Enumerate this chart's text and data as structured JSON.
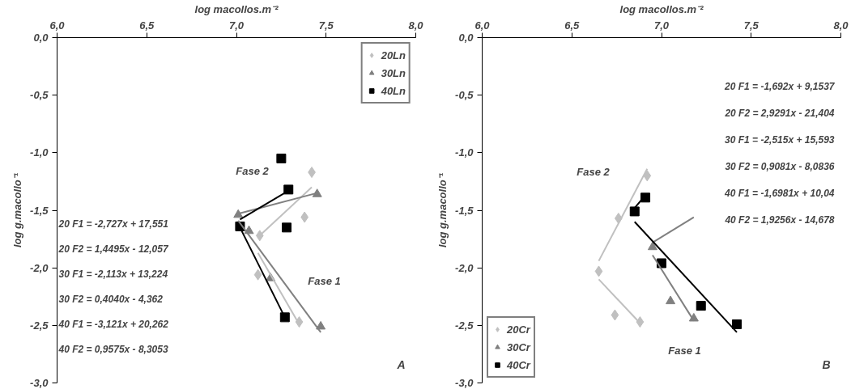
{
  "chart_data": [
    {
      "type": "scatter",
      "title": "A",
      "xlabel": "log macollos.m⁻²",
      "ylabel": "log g.macollo⁻¹",
      "xlim": [
        6.0,
        8.0
      ],
      "xticks": [
        {
          "value": 6.0,
          "label": "6,0"
        },
        {
          "value": 6.5,
          "label": "6,5"
        },
        {
          "value": 7.0,
          "label": "7,0"
        },
        {
          "value": 7.5,
          "label": "7,5"
        },
        {
          "value": 8.0,
          "label": "8,0"
        }
      ],
      "ylim": [
        -3.0,
        0.0
      ],
      "yticks": [
        {
          "value": 0.0,
          "label": "0,0"
        },
        {
          "value": -0.5,
          "label": "-0,5"
        },
        {
          "value": -1.0,
          "label": "-1,0"
        },
        {
          "value": -1.5,
          "label": "-1,5"
        },
        {
          "value": -2.0,
          "label": "-2,0"
        },
        {
          "value": -2.5,
          "label": "-2,5"
        },
        {
          "value": -3.0,
          "label": "-3,0"
        }
      ],
      "grid": false,
      "legend": "top right",
      "series": [
        {
          "name": "20Ln",
          "marker": "diamond",
          "color": "#c0c0c0",
          "x": [
            7.42,
            7.38,
            7.13,
            7.12,
            7.35
          ],
          "values": [
            -1.17,
            -1.56,
            -1.72,
            -2.06,
            -2.47
          ]
        },
        {
          "name": "30Ln",
          "marker": "triangle",
          "color": "#808080",
          "x": [
            7.01,
            7.07,
            7.19,
            7.45,
            7.47
          ],
          "values": [
            -1.54,
            -1.68,
            -2.09,
            -1.36,
            -2.51
          ]
        },
        {
          "name": "40Ln",
          "marker": "square",
          "color": "#000000",
          "x": [
            7.25,
            7.29,
            7.28,
            7.02,
            7.27
          ],
          "values": [
            -1.05,
            -1.32,
            -1.65,
            -1.64,
            -2.43
          ]
        },
        {
          "type": "line",
          "color": "#c0c0c0",
          "x": [
            7.12,
            7.35
          ],
          "values": [
            -1.87,
            -2.49
          ]
        },
        {
          "type": "line",
          "color": "#c0c0c0",
          "x": [
            7.13,
            7.42
          ],
          "values": [
            -1.72,
            -1.3
          ]
        },
        {
          "type": "line",
          "color": "#808080",
          "x": [
            7.01,
            7.47
          ],
          "values": [
            -1.59,
            -2.56
          ]
        },
        {
          "type": "line",
          "color": "#808080",
          "x": [
            7.01,
            7.45
          ],
          "values": [
            -1.53,
            -1.35
          ]
        },
        {
          "type": "line",
          "color": "#000000",
          "x": [
            7.02,
            7.27
          ],
          "values": [
            -1.65,
            -2.43
          ]
        },
        {
          "type": "line",
          "color": "#000000",
          "x": [
            7.02,
            7.29
          ],
          "values": [
            -1.58,
            -1.33
          ]
        }
      ],
      "annotations": [
        "Fase 2",
        "Fase 1",
        "20 F1 = -2,727x + 17,551",
        "20 F2 = 1,4495x - 12,057",
        "30 F1 = -2,113x + 13,224",
        "30 F2 = 0,4040x - 4,362",
        "40 F1 = -3,121x + 20,262",
        "40 F2 = 0,9575x - 8,3053"
      ]
    },
    {
      "type": "scatter",
      "title": "B",
      "xlabel": "log macollos.m⁻²",
      "ylabel": "log g.macollo⁻¹",
      "xlim": [
        6.0,
        8.0
      ],
      "xticks": [
        {
          "value": 6.0,
          "label": "6,0"
        },
        {
          "value": 6.5,
          "label": "6,5"
        },
        {
          "value": 7.0,
          "label": "7,0"
        },
        {
          "value": 7.5,
          "label": "7,5"
        },
        {
          "value": 8.0,
          "label": "8,0"
        }
      ],
      "ylim": [
        -3.0,
        0.0
      ],
      "yticks": [
        {
          "value": 0.0,
          "label": "0,0"
        },
        {
          "value": -0.5,
          "label": "-0,5"
        },
        {
          "value": -1.0,
          "label": "-1,0"
        },
        {
          "value": -1.5,
          "label": "-1,5"
        },
        {
          "value": -2.0,
          "label": "-2,0"
        },
        {
          "value": -2.5,
          "label": "-2,5"
        },
        {
          "value": -3.0,
          "label": "-3,0"
        }
      ],
      "grid": false,
      "legend": "bottom left",
      "series": [
        {
          "name": "20Cr",
          "marker": "diamond",
          "color": "#c0c0c0",
          "x": [
            6.92,
            6.76,
            6.65,
            6.74,
            6.88
          ],
          "values": [
            -1.2,
            -1.57,
            -2.03,
            -2.41,
            -2.47
          ]
        },
        {
          "name": "30Cr",
          "marker": "triangle",
          "color": "#808080",
          "x": [
            6.95,
            7.05,
            7.18
          ],
          "values": [
            -1.82,
            -2.29,
            -2.44
          ]
        },
        {
          "name": "40Cr",
          "marker": "square",
          "color": "#000000",
          "x": [
            6.91,
            6.85,
            7.0,
            7.22,
            7.42
          ],
          "values": [
            -1.39,
            -1.51,
            -1.96,
            -2.33,
            -2.49
          ]
        },
        {
          "type": "line",
          "color": "#c0c0c0",
          "x": [
            6.65,
            6.88
          ],
          "values": [
            -2.1,
            -2.48
          ]
        },
        {
          "type": "line",
          "color": "#c0c0c0",
          "x": [
            6.65,
            6.92
          ],
          "values": [
            -1.94,
            -1.14
          ]
        },
        {
          "type": "line",
          "color": "#808080",
          "x": [
            6.95,
            7.18
          ],
          "values": [
            -1.89,
            -2.46
          ]
        },
        {
          "type": "line",
          "color": "#808080",
          "x": [
            6.95,
            7.18
          ],
          "values": [
            -1.78,
            -1.56
          ]
        },
        {
          "type": "line",
          "color": "#000000",
          "x": [
            6.85,
            7.42
          ],
          "values": [
            -1.6,
            -2.56
          ]
        },
        {
          "type": "line",
          "color": "#000000",
          "x": [
            6.85,
            6.91
          ],
          "values": [
            -1.48,
            -1.37
          ]
        }
      ],
      "annotations": [
        "Fase 2",
        "Fase 1",
        "20 F1 = -1,692x + 9,1537",
        "20 F2 = 2,9291x - 21,404",
        "30 F1 = -2,515x + 15,593",
        "30 F2 = 0,9081x - 8,0836",
        "40 F1 = -1,6981x + 10,04",
        "40 F2 = 1,9256x - 14,678"
      ]
    }
  ]
}
